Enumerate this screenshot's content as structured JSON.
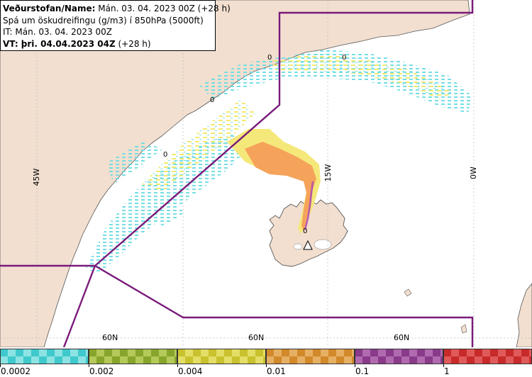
{
  "title": {
    "line1_prefix": "Veðurstofan/Name:",
    "line1_value": "Mán. 03. 04. 2023 00Z (+28 h)",
    "line2": "Spá um öskudreifingu (g/m3) í 850hPa (5000ft)",
    "line3": "IT: Mán. 03. 04. 2023 00Z",
    "line4_prefix": "VT: þri. 04.04.2023 04Z",
    "line4_value": "(+28 h)"
  },
  "map": {
    "meridian_labels": [
      "45W",
      "15W",
      "0W"
    ],
    "parallel_labels": [
      "60N",
      "60N",
      "60N"
    ],
    "contour_labels": [
      "0",
      "0",
      "0",
      "0",
      "0"
    ],
    "colors": {
      "land": "#f2dfd0",
      "sea": "#ffffff",
      "fir_boundary": "#7a1a7a",
      "ash_low": "#5ed9e0",
      "ash_mid": "#f2e35a",
      "ash_high": "#f5a35a"
    }
  },
  "legend": {
    "bins": [
      {
        "color": "#3fc9cc",
        "color2": "#8de3e3"
      },
      {
        "color": "#88a52b",
        "color2": "#b4c95a"
      },
      {
        "color": "#c9c12e",
        "color2": "#e3de66"
      },
      {
        "color": "#d1892a",
        "color2": "#e6b064"
      },
      {
        "color": "#8a3a8a",
        "color2": "#b06ab0"
      },
      {
        "color": "#c82a2a",
        "color2": "#e05a5a"
      }
    ],
    "labels": [
      "0.0002",
      "0.002",
      "0.004",
      "0.01",
      "0.1",
      "1"
    ]
  }
}
